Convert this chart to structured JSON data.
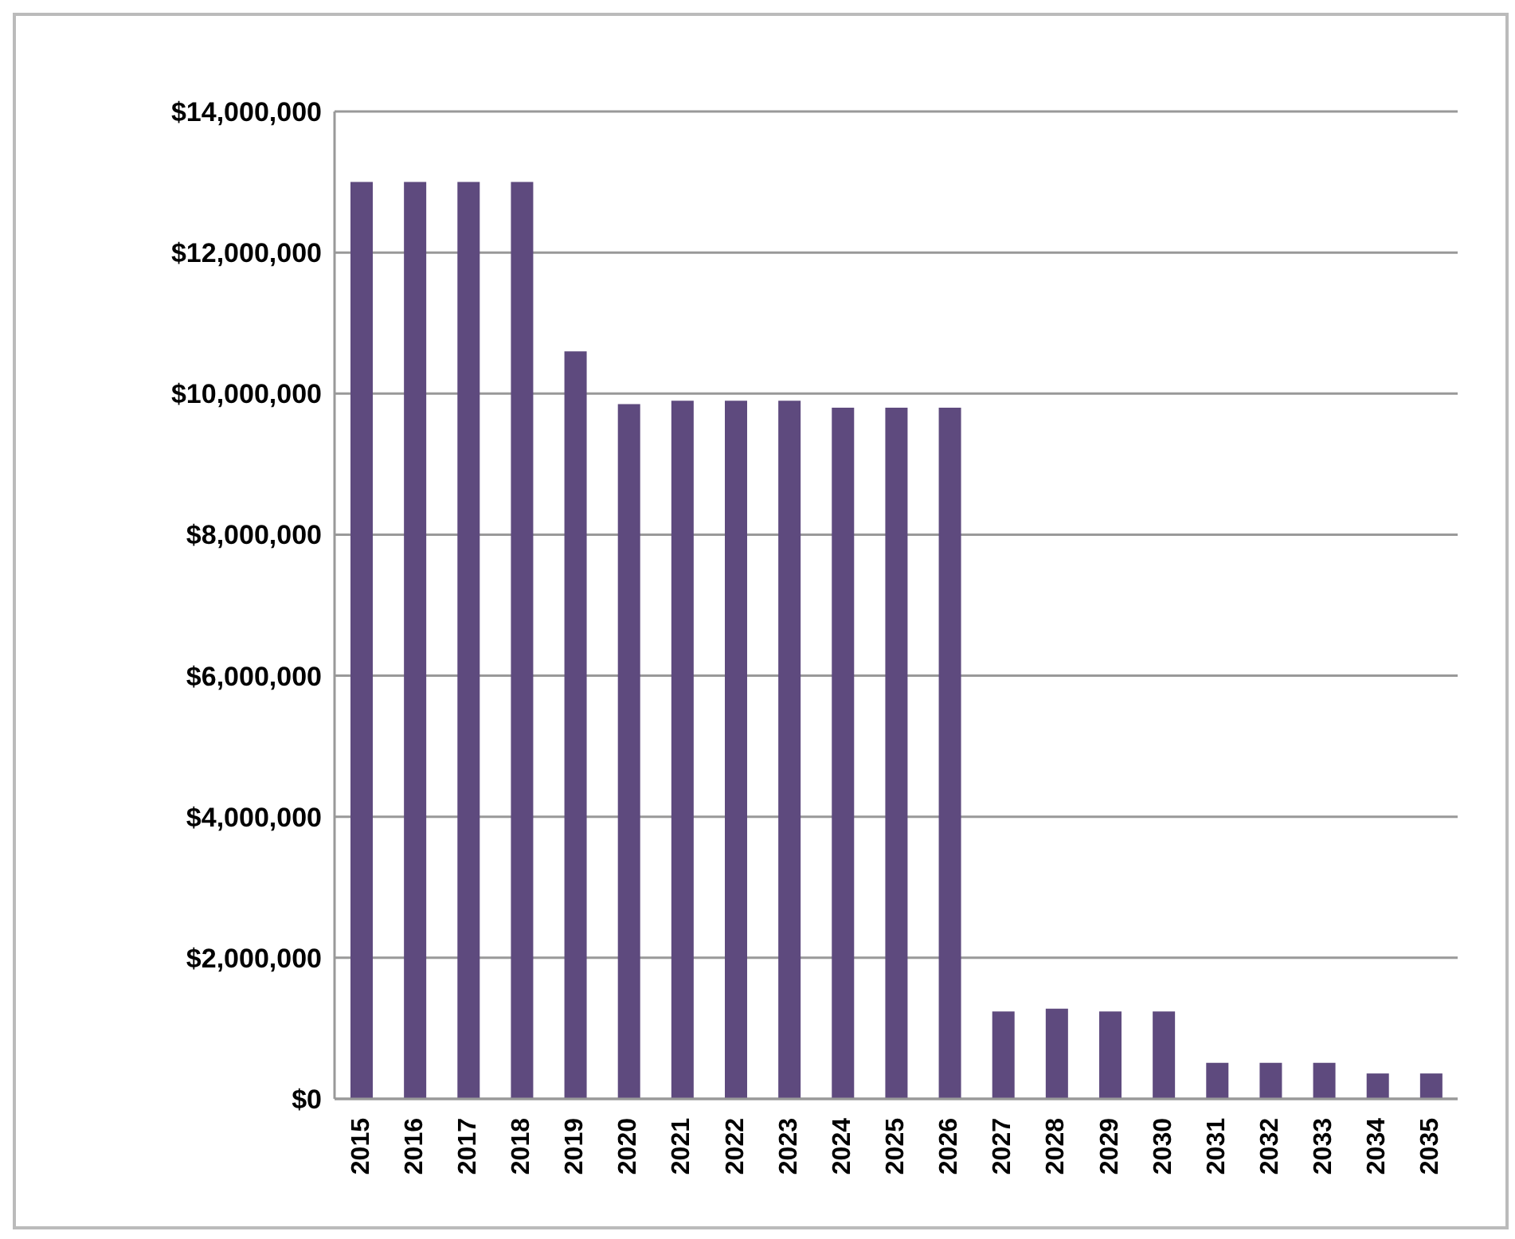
{
  "chart_data": {
    "type": "bar",
    "categories": [
      "2015",
      "2016",
      "2017",
      "2018",
      "2019",
      "2020",
      "2021",
      "2022",
      "2023",
      "2024",
      "2025",
      "2026",
      "2027",
      "2028",
      "2029",
      "2030",
      "2031",
      "2032",
      "2033",
      "2034",
      "2035"
    ],
    "values": [
      13000000,
      13000000,
      13000000,
      13000000,
      10600000,
      9850000,
      9900000,
      9900000,
      9900000,
      9800000,
      9800000,
      9800000,
      1240000,
      1280000,
      1240000,
      1240000,
      510000,
      510000,
      510000,
      360000,
      360000
    ],
    "color": "#5e4a7e",
    "ylim": [
      0,
      14000000
    ],
    "yticks": [
      {
        "value": 0,
        "label": "$0"
      },
      {
        "value": 2000000,
        "label": "$2,000,000"
      },
      {
        "value": 4000000,
        "label": "$4,000,000"
      },
      {
        "value": 6000000,
        "label": "$6,000,000"
      },
      {
        "value": 8000000,
        "label": "$8,000,000"
      },
      {
        "value": 10000000,
        "label": "$10,000,000"
      },
      {
        "value": 12000000,
        "label": "$12,000,000"
      },
      {
        "value": 14000000,
        "label": "$14,000,000"
      }
    ],
    "grid": "y"
  }
}
